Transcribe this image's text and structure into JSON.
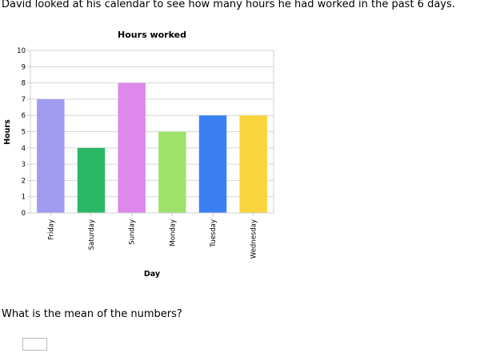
{
  "prompt": "David looked at his calendar to see how many hours he had worked in the past 6 days.",
  "question": "What is the mean of the numbers?",
  "answer": {
    "value": ""
  },
  "chart_data": {
    "type": "bar",
    "title": "Hours worked",
    "xlabel": "Day",
    "ylabel": "Hours",
    "categories": [
      "Friday",
      "Saturday",
      "Sunday",
      "Monday",
      "Tuesday",
      "Wednesday"
    ],
    "values": [
      7,
      4,
      8,
      5,
      6,
      6
    ],
    "colors": [
      "#a09bf0",
      "#2bb866",
      "#dd88ea",
      "#9ee26c",
      "#3a80f2",
      "#f8d53c"
    ],
    "ylim": [
      0,
      10
    ],
    "yticks": [
      "0",
      "1",
      "2",
      "3",
      "4",
      "5",
      "6",
      "7",
      "8",
      "9",
      "10"
    ],
    "grid": true,
    "gridColor": "#d6d6d6",
    "axisColor": "#cfcfcf",
    "legend": "none"
  }
}
